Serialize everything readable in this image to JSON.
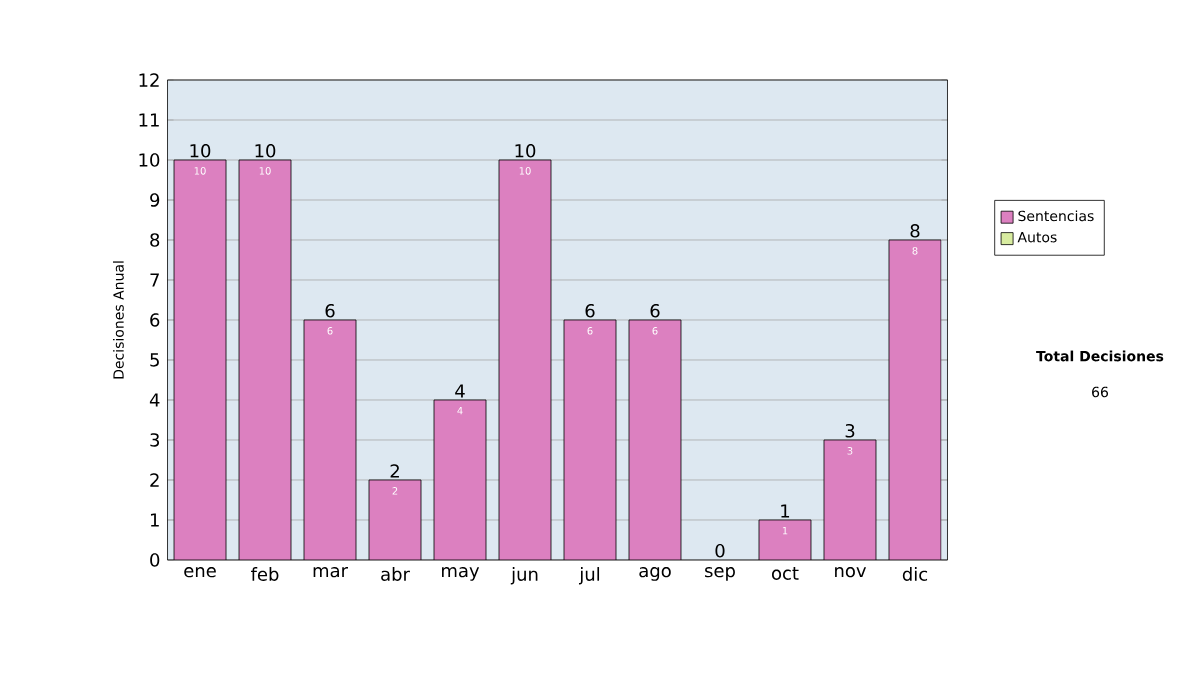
{
  "chart_data": {
    "type": "bar",
    "stacked": true,
    "ylabel": "Decisiones Anual",
    "categories": [
      "ene",
      "feb",
      "mar",
      "abr",
      "may",
      "jun",
      "jul",
      "ago",
      "sep",
      "oct",
      "nov",
      "dic"
    ],
    "series": [
      {
        "name": "Sentencias",
        "color": "#dc80c0",
        "values": [
          10,
          10,
          6,
          2,
          4,
          10,
          6,
          6,
          0,
          1,
          3,
          8
        ],
        "value_labels": [
          "10",
          "10",
          "6",
          "2",
          "4",
          "10",
          "6",
          "6",
          null,
          "1",
          "3",
          "8"
        ]
      },
      {
        "name": "Autos",
        "color": "#d8eca0",
        "values": [
          0,
          0,
          0,
          0,
          0,
          0,
          0,
          0,
          0,
          0,
          0,
          0
        ]
      }
    ],
    "totals": [
      "10",
      "10",
      "6",
      "2",
      "4",
      "10",
      "6",
      "6",
      "0",
      "1",
      "3",
      "8"
    ],
    "ylim": [
      0,
      12
    ],
    "yticks": [
      0,
      1,
      2,
      3,
      4,
      5,
      6,
      7,
      8,
      9,
      10,
      11,
      12
    ],
    "grid": "y",
    "legend": "right",
    "annotations": [
      "Total Decisiones",
      "66"
    ]
  }
}
